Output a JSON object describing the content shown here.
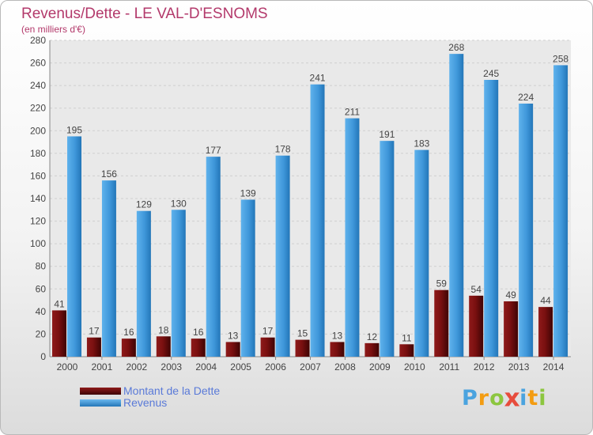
{
  "header": {
    "title": "Revenus/Dette - LE VAL-D'ESNOMS",
    "subtitle": "(en milliers d'€)"
  },
  "chart_data": {
    "type": "bar",
    "categories": [
      "2000",
      "2001",
      "2002",
      "2003",
      "2004",
      "2005",
      "2006",
      "2007",
      "2008",
      "2009",
      "2010",
      "2011",
      "2012",
      "2013",
      "2014"
    ],
    "series": [
      {
        "name": "Montant de la Dette",
        "color": "#6b0b0b",
        "values": [
          41,
          17,
          16,
          18,
          16,
          13,
          17,
          15,
          13,
          12,
          11,
          59,
          54,
          49,
          44
        ]
      },
      {
        "name": "Revenus",
        "color": "#4a9de0",
        "values": [
          195,
          156,
          129,
          130,
          177,
          139,
          178,
          241,
          211,
          191,
          183,
          268,
          245,
          224,
          258
        ]
      }
    ],
    "ylim": [
      0,
      280
    ],
    "yticks": [
      0,
      20,
      40,
      60,
      80,
      100,
      120,
      140,
      160,
      180,
      200,
      220,
      240,
      260,
      280
    ],
    "grid": true,
    "legend_position": "bottom-left"
  },
  "legend": {
    "items": [
      {
        "label": "Montant de la Dette",
        "color": "#6b0b0b"
      },
      {
        "label": "Revenus",
        "color": "#4a9de0"
      }
    ]
  },
  "logo": {
    "text": "Proxiti",
    "letters": [
      {
        "ch": "P",
        "color": "#4aa3df"
      },
      {
        "ch": "r",
        "color": "#f39c12"
      },
      {
        "ch": "o",
        "color": "#8cc63f"
      },
      {
        "ch": "x",
        "color": "#e74c3c"
      },
      {
        "ch": "i",
        "color": "#4aa3df"
      },
      {
        "ch": "t",
        "color": "#f39c12"
      },
      {
        "ch": "i",
        "color": "#8cc63f"
      }
    ]
  }
}
